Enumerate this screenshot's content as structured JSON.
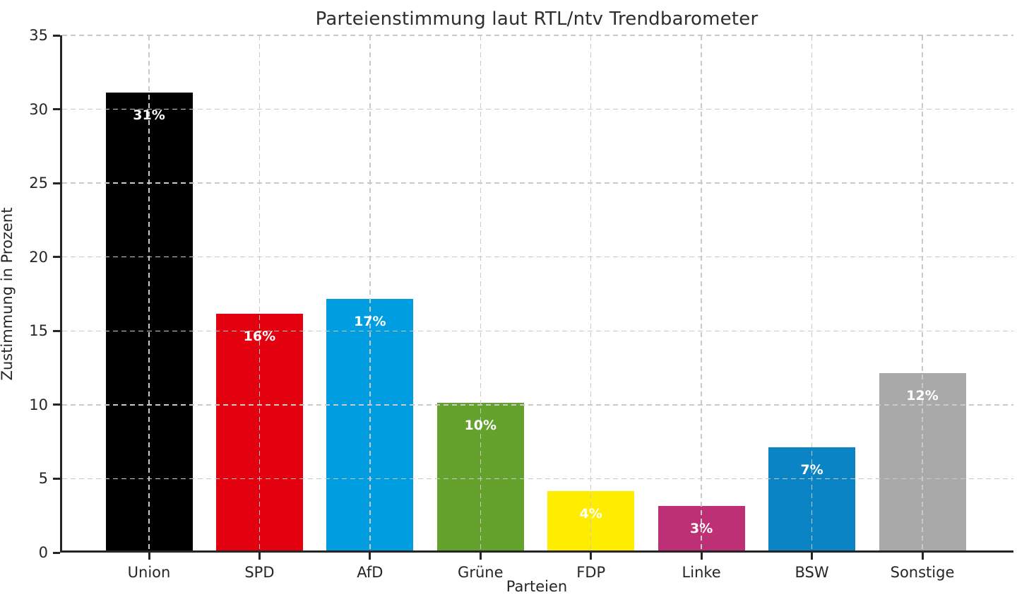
{
  "page": {
    "background_color": "#ffffff",
    "text_color": "#262626"
  },
  "chart_data": {
    "type": "bar",
    "title": "Parteienstimmung laut RTL/ntv Trendbarometer",
    "xlabel": "Parteien",
    "ylabel": "Zustimmung in Prozent",
    "categories": [
      "Union",
      "SPD",
      "AfD",
      "Grüne",
      "FDP",
      "Linke",
      "BSW",
      "Sonstige"
    ],
    "values": [
      31,
      16,
      17,
      10,
      4,
      3,
      7,
      12
    ],
    "value_labels": [
      "31%",
      "16%",
      "17%",
      "10%",
      "4%",
      "3%",
      "7%",
      "12%"
    ],
    "bar_colors": [
      "#000000",
      "#E3000F",
      "#009EE0",
      "#64A12D",
      "#FFED00",
      "#BE3075",
      "#0B84C6",
      "#A9A9A9"
    ],
    "value_label_color": "#ffffff",
    "ylim": [
      0,
      35
    ],
    "yticks": [
      0,
      5,
      10,
      15,
      20,
      25,
      30,
      35
    ],
    "grid": "dashed gridlines on both axes, drawn above bars",
    "legend": "none",
    "style": {
      "grid_color": "#c9c9c9",
      "axis_color": "#262626",
      "background": "#ffffff"
    }
  }
}
